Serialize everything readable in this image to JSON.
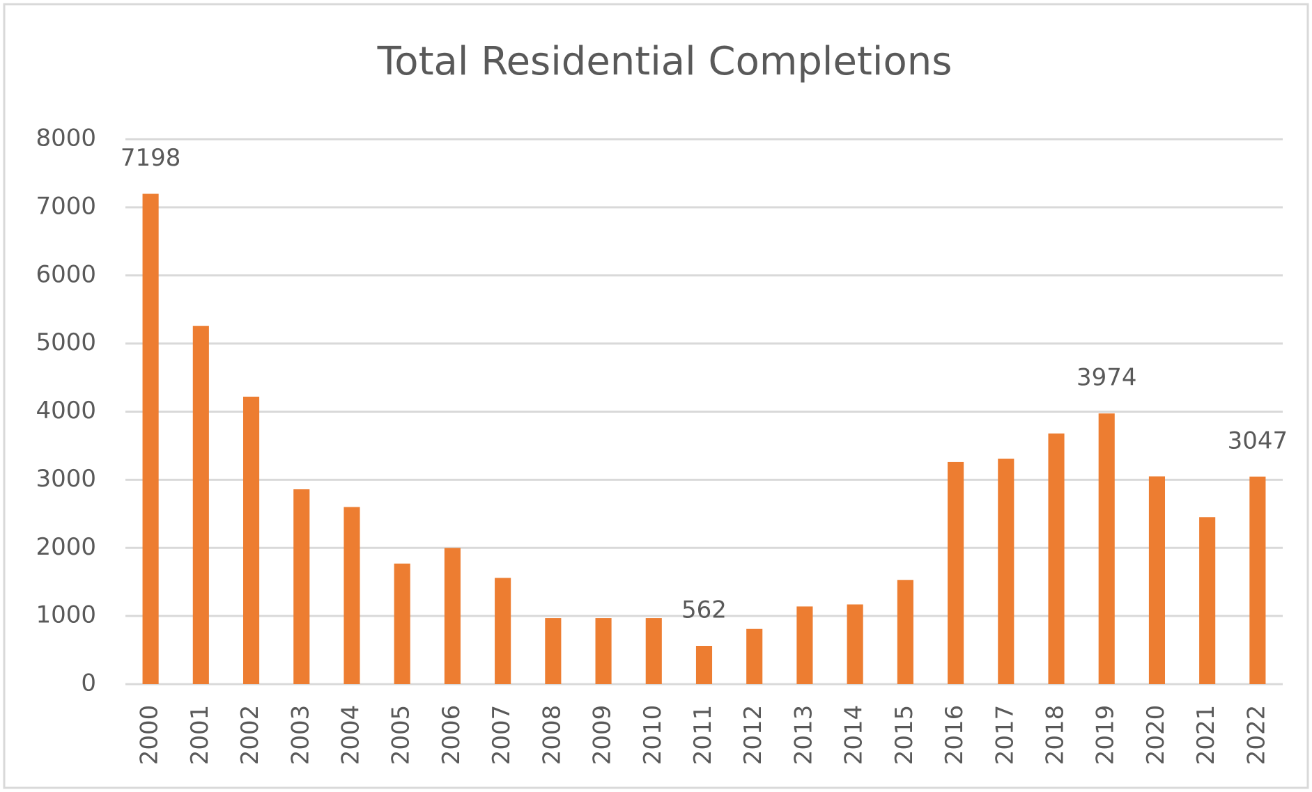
{
  "chart_data": {
    "type": "bar",
    "title": "Total Residential Completions",
    "categories": [
      "2000",
      "2001",
      "2002",
      "2003",
      "2004",
      "2005",
      "2006",
      "2007",
      "2008",
      "2009",
      "2010",
      "2011",
      "2012",
      "2013",
      "2014",
      "2015",
      "2016",
      "2017",
      "2018",
      "2019",
      "2020",
      "2021",
      "2022"
    ],
    "values": [
      7198,
      5260,
      4220,
      2860,
      2600,
      1770,
      2000,
      1560,
      970,
      970,
      970,
      562,
      810,
      1140,
      1170,
      1530,
      3260,
      3310,
      3680,
      3974,
      3050,
      2450,
      3047
    ],
    "value_labels": [
      "7198",
      null,
      null,
      null,
      null,
      null,
      null,
      null,
      null,
      null,
      null,
      "562",
      null,
      null,
      null,
      null,
      null,
      null,
      null,
      "3974",
      null,
      null,
      "3047"
    ],
    "color": "#ed7d31",
    "ylim": [
      0,
      8000
    ],
    "yticks": [
      0,
      1000,
      2000,
      3000,
      4000,
      5000,
      6000,
      7000,
      8000
    ],
    "grid": true
  }
}
